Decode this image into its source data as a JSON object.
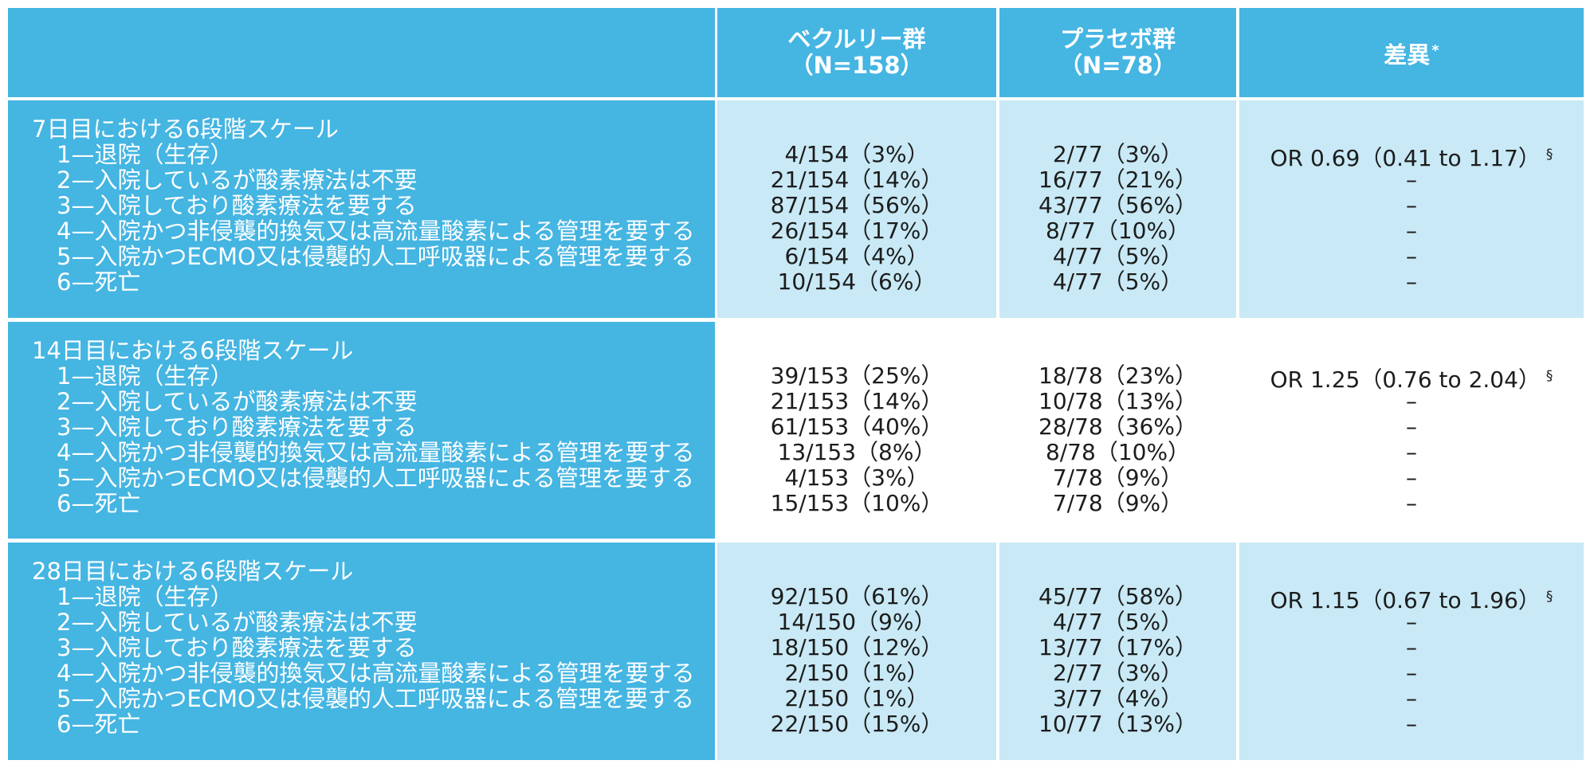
{
  "colors": {
    "header_bg": "#45b5e2",
    "light_cell_bg": "#c8e9f5",
    "plain_cell_bg": "#ffffff",
    "text_dark": "#1c1c1c",
    "text_light": "#ffffff"
  },
  "table": {
    "header": {
      "corner": "",
      "veklury_line1": "ベクルリー群",
      "veklury_line2": "（N=158）",
      "placebo_line1": "プラセボ群",
      "placebo_line2": "（N=78）",
      "difference_label": "差異",
      "difference_mark": "*"
    },
    "rows": [
      {
        "title": "7日目における6段階スケール",
        "items": [
          {
            "label": "1—退院（生存）",
            "veklury": "4/154（3%）",
            "placebo": "2/77（3%）",
            "difference": "OR 0.69（0.41 to 1.17）",
            "difference_mark": "§"
          },
          {
            "label": "2—入院しているが酸素療法は不要",
            "veklury": "21/154（14%）",
            "placebo": "16/77（21%）",
            "difference": "–"
          },
          {
            "label": "3—入院しており酸素療法を要する",
            "veklury": "87/154（56%）",
            "placebo": "43/77（56%）",
            "difference": "–"
          },
          {
            "label": "4—入院かつ非侵襲的換気又は高流量酸素による管理を要する",
            "veklury": "26/154（17%）",
            "placebo": "8/77（10%）",
            "difference": "–"
          },
          {
            "label": "5—入院かつECMO又は侵襲的人工呼吸器による管理を要する",
            "veklury": "6/154（4%）",
            "placebo": "4/77（5%）",
            "difference": "–"
          },
          {
            "label": "6—死亡",
            "veklury": "10/154（6%）",
            "placebo": "4/77（5%）",
            "difference": "–"
          }
        ]
      },
      {
        "title": "14日目における6段階スケール",
        "items": [
          {
            "label": "1—退院（生存）",
            "veklury": "39/153（25%）",
            "placebo": "18/78（23%）",
            "difference": "OR 1.25（0.76 to 2.04）",
            "difference_mark": "§"
          },
          {
            "label": "2—入院しているが酸素療法は不要",
            "veklury": "21/153（14%）",
            "placebo": "10/78（13%）",
            "difference": "–"
          },
          {
            "label": "3—入院しており酸素療法を要する",
            "veklury": "61/153（40%）",
            "placebo": "28/78（36%）",
            "difference": "–"
          },
          {
            "label": "4—入院かつ非侵襲的換気又は高流量酸素による管理を要する",
            "veklury": "13/153（8%）",
            "placebo": "8/78（10%）",
            "difference": "–"
          },
          {
            "label": "5—入院かつECMO又は侵襲的人工呼吸器による管理を要する",
            "veklury": "4/153（3%）",
            "placebo": "7/78（9%）",
            "difference": "–"
          },
          {
            "label": "6—死亡",
            "veklury": "15/153（10%）",
            "placebo": "7/78（9%）",
            "difference": "–"
          }
        ]
      },
      {
        "title": "28日目における6段階スケール",
        "items": [
          {
            "label": "1—退院（生存）",
            "veklury": "92/150（61%）",
            "placebo": "45/77（58%）",
            "difference": "OR 1.15（0.67 to 1.96）",
            "difference_mark": "§"
          },
          {
            "label": "2—入院しているが酸素療法は不要",
            "veklury": "14/150（9%）",
            "placebo": "4/77（5%）",
            "difference": "–"
          },
          {
            "label": "3—入院しており酸素療法を要する",
            "veklury": "18/150（12%）",
            "placebo": "13/77（17%）",
            "difference": "–"
          },
          {
            "label": "4—入院かつ非侵襲的換気又は高流量酸素による管理を要する",
            "veklury": "2/150（1%）",
            "placebo": "2/77（3%）",
            "difference": "–"
          },
          {
            "label": "5—入院かつECMO又は侵襲的人工呼吸器による管理を要する",
            "veklury": "2/150（1%）",
            "placebo": "3/77（4%）",
            "difference": "–"
          },
          {
            "label": "6—死亡",
            "veklury": "22/150（15%）",
            "placebo": "10/77（13%）",
            "difference": "–"
          }
        ]
      }
    ]
  }
}
